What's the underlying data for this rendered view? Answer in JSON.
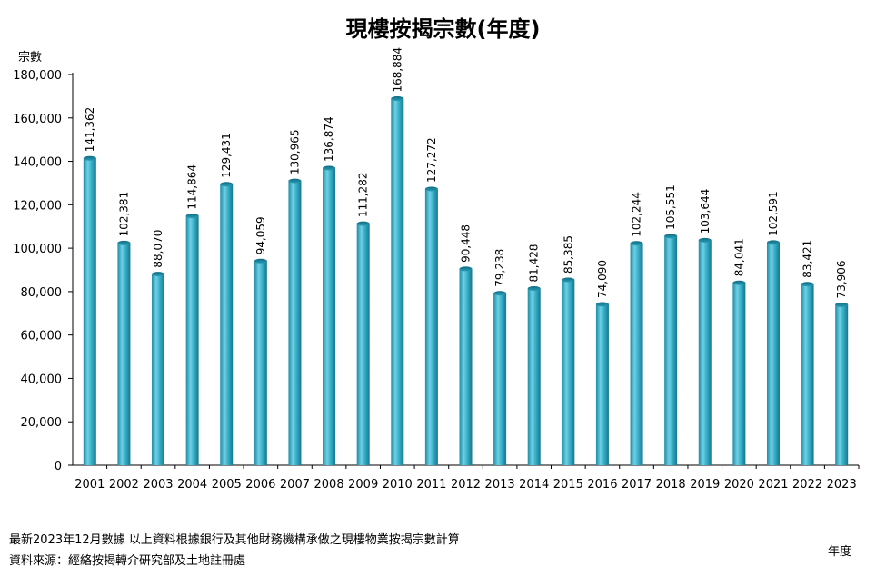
{
  "chart_data": {
    "type": "bar",
    "title": "現樓按揭宗數(年度)",
    "ylabel": "宗數",
    "xlabel": "年度",
    "ylim": [
      0,
      180000
    ],
    "yticks": [
      0,
      20000,
      40000,
      60000,
      80000,
      100000,
      120000,
      140000,
      160000,
      180000
    ],
    "ytick_labels": [
      "0",
      "20,000",
      "40,000",
      "60,000",
      "80,000",
      "100,000",
      "120,000",
      "140,000",
      "160,000",
      "180,000"
    ],
    "categories": [
      "2001",
      "2002",
      "2003",
      "2004",
      "2005",
      "2006",
      "2007",
      "2008",
      "2009",
      "2010",
      "2011",
      "2012",
      "2013",
      "2014",
      "2015",
      "2016",
      "2017",
      "2018",
      "2019",
      "2020",
      "2021",
      "2022",
      "2023"
    ],
    "values": [
      141362,
      102381,
      88070,
      114864,
      129431,
      94059,
      130965,
      136874,
      111282,
      168884,
      127272,
      90448,
      79238,
      81428,
      85385,
      74090,
      102244,
      105551,
      103644,
      84041,
      102591,
      83421,
      73906
    ],
    "value_labels": [
      "141,362",
      "102,381",
      "88,070",
      "114,864",
      "129,431",
      "94,059",
      "130,965",
      "136,874",
      "111,282",
      "168,884",
      "127,272",
      "90,448",
      "79,238",
      "81,428",
      "85,385",
      "74,090",
      "102,244",
      "105,551",
      "103,644",
      "84,041",
      "102,591",
      "83,421",
      "73,906"
    ],
    "grid": false,
    "bar_color": "#3aaec7"
  },
  "notes": {
    "line1": "最新2023年12月數據 以上資料根據銀行及其他財務機構承做之現樓物業按揭宗數計算",
    "line2": "資料來源：經絡按揭轉介研究部及土地註冊處"
  }
}
